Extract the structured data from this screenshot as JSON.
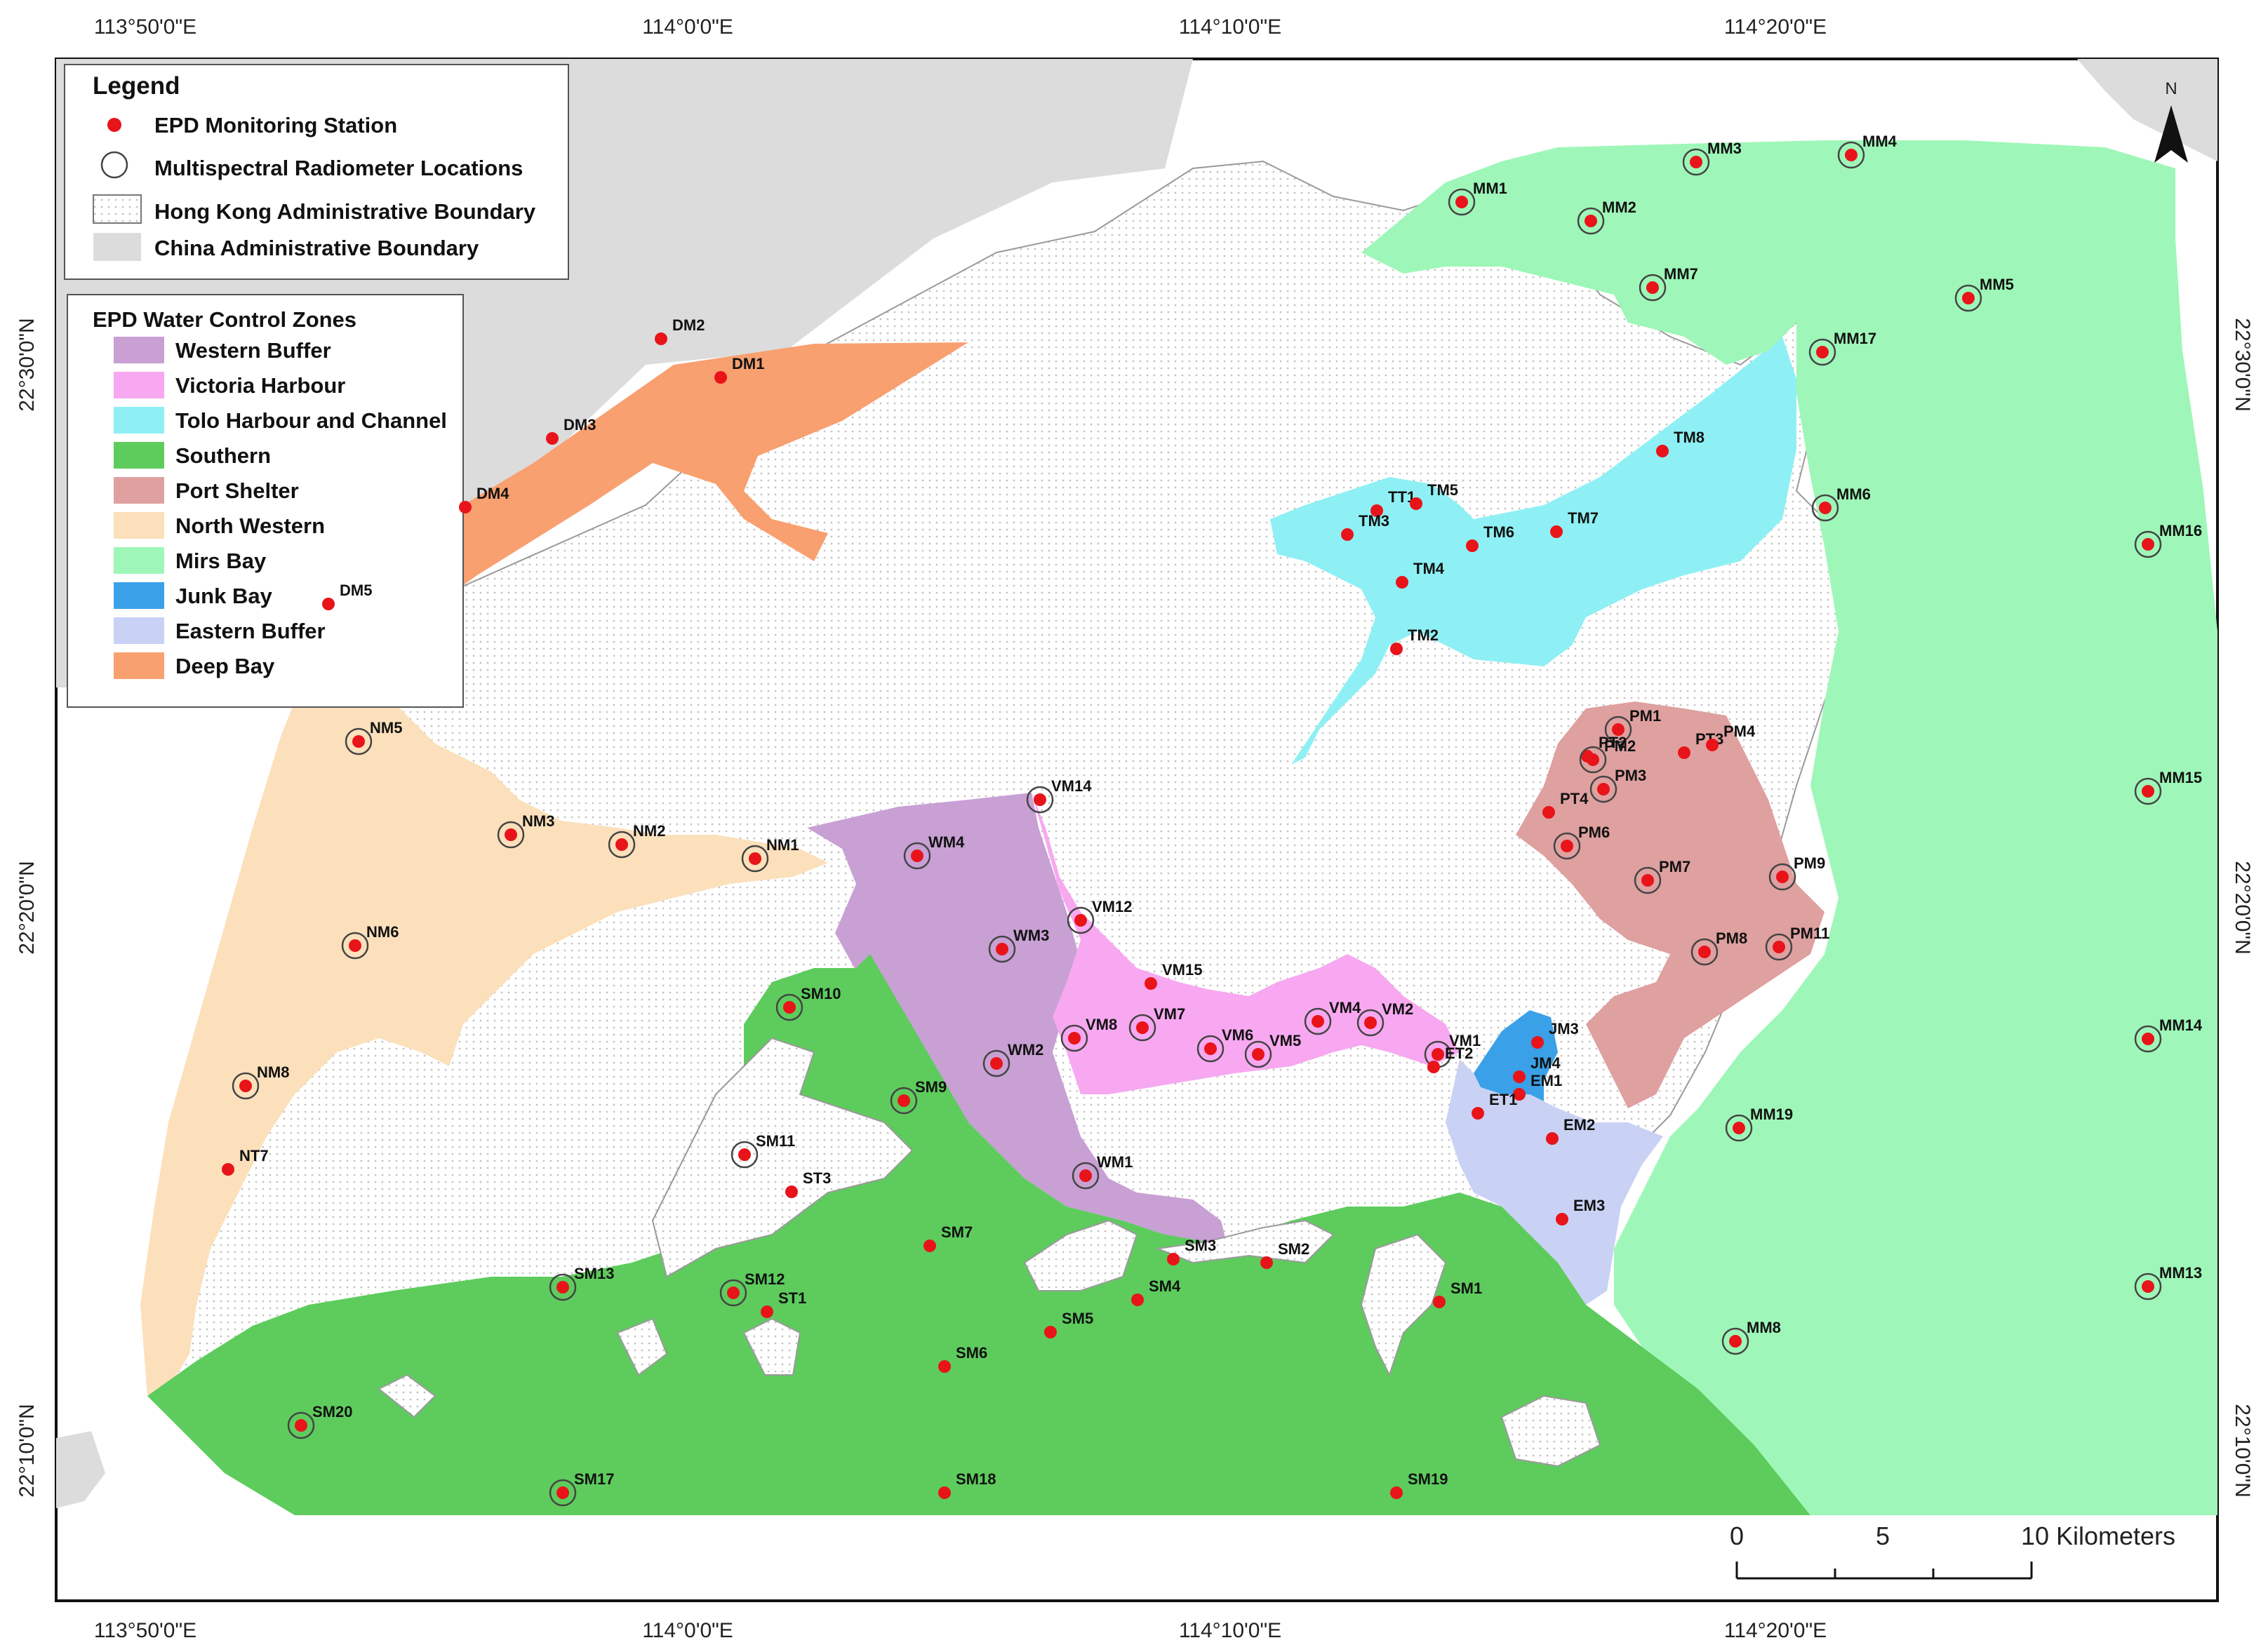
{
  "graticule": {
    "top": [
      "113°50'0\"E",
      "114°0'0\"E",
      "114°10'0\"E",
      "114°20'0\"E"
    ],
    "bottom": [
      "113°50'0\"E",
      "114°0'0\"E",
      "114°10'0\"E",
      "114°20'0\"E"
    ],
    "left": [
      "22°30'0\"N",
      "22°20'0\"N",
      "22°10'0\"N"
    ],
    "right": [
      "22°30'0\"N",
      "22°20'0\"N",
      "22°10'0\"N"
    ]
  },
  "legend": {
    "title": "Legend",
    "items": [
      {
        "label": "EPD Monitoring Station"
      },
      {
        "label": "Multispectral Radiometer Locations"
      },
      {
        "label": "Hong Kong Administrative Boundary"
      },
      {
        "label": "China Administrative Boundary"
      }
    ]
  },
  "zones_legend": {
    "title": "EPD Water Control Zones",
    "items": [
      {
        "label": "Western Buffer",
        "color": "#c8a0d4"
      },
      {
        "label": "Victoria Harbour",
        "color": "#f7a8f0"
      },
      {
        "label": "Tolo Harbour and Channel",
        "color": "#8ef0f4"
      },
      {
        "label": "Southern",
        "color": "#5dcc5d"
      },
      {
        "label": "Port Shelter",
        "color": "#dfa0a0"
      },
      {
        "label": "North Western",
        "color": "#fbe0bb"
      },
      {
        "label": "Mirs Bay",
        "color": "#9ef7b8"
      },
      {
        "label": "Junk Bay",
        "color": "#3aa0e8"
      },
      {
        "label": "Eastern Buffer",
        "color": "#c9d2f4"
      },
      {
        "label": "Deep Bay",
        "color": "#f8a070"
      }
    ]
  },
  "north_arrow": {
    "label": "N"
  },
  "scale_bar": {
    "ticks": [
      "0",
      "5",
      "10 Kilometers"
    ]
  },
  "stations": [
    {
      "label": "MM1",
      "ring": true
    },
    {
      "label": "MM2",
      "ring": true
    },
    {
      "label": "MM3",
      "ring": true
    },
    {
      "label": "MM4",
      "ring": true
    },
    {
      "label": "MM5",
      "ring": true
    },
    {
      "label": "MM7",
      "ring": true
    },
    {
      "label": "MM17",
      "ring": true
    },
    {
      "label": "MM6",
      "ring": true
    },
    {
      "label": "MM16",
      "ring": true
    },
    {
      "label": "MM15",
      "ring": true
    },
    {
      "label": "MM14",
      "ring": true
    },
    {
      "label": "MM13",
      "ring": true
    },
    {
      "label": "MM19",
      "ring": true
    },
    {
      "label": "MM8",
      "ring": true
    },
    {
      "label": "DM1",
      "ring": false
    },
    {
      "label": "DM2",
      "ring": false
    },
    {
      "label": "DM3",
      "ring": false
    },
    {
      "label": "DM4",
      "ring": false
    },
    {
      "label": "DM5",
      "ring": false
    },
    {
      "label": "NM5",
      "ring": true
    },
    {
      "label": "NM3",
      "ring": true
    },
    {
      "label": "NM2",
      "ring": true
    },
    {
      "label": "NM1",
      "ring": true
    },
    {
      "label": "NM6",
      "ring": true
    },
    {
      "label": "NM8",
      "ring": true
    },
    {
      "label": "NT7",
      "ring": false
    },
    {
      "label": "TT1",
      "ring": false
    },
    {
      "label": "TM5",
      "ring": false
    },
    {
      "label": "TM3",
      "ring": false
    },
    {
      "label": "TM6",
      "ring": false
    },
    {
      "label": "TM7",
      "ring": false
    },
    {
      "label": "TM8",
      "ring": false
    },
    {
      "label": "TM4",
      "ring": false
    },
    {
      "label": "TM2",
      "ring": false
    },
    {
      "label": "PM1",
      "ring": true
    },
    {
      "label": "PT2",
      "ring": false
    },
    {
      "label": "PM2",
      "ring": true
    },
    {
      "label": "PT3",
      "ring": false
    },
    {
      "label": "PM4",
      "ring": false
    },
    {
      "label": "PM3",
      "ring": true
    },
    {
      "label": "PT4",
      "ring": false
    },
    {
      "label": "PM6",
      "ring": true
    },
    {
      "label": "PM7",
      "ring": true
    },
    {
      "label": "PM9",
      "ring": true
    },
    {
      "label": "PM8",
      "ring": true
    },
    {
      "label": "PM11",
      "ring": true
    },
    {
      "label": "VM14",
      "ring": true
    },
    {
      "label": "WM4",
      "ring": true
    },
    {
      "label": "VM12",
      "ring": true
    },
    {
      "label": "WM3",
      "ring": true
    },
    {
      "label": "VM15",
      "ring": false
    },
    {
      "label": "VM8",
      "ring": true
    },
    {
      "label": "VM7",
      "ring": true
    },
    {
      "label": "VM6",
      "ring": true
    },
    {
      "label": "VM5",
      "ring": true
    },
    {
      "label": "VM4",
      "ring": true
    },
    {
      "label": "VM2",
      "ring": true
    },
    {
      "label": "VM1",
      "ring": true
    },
    {
      "label": "ET2",
      "ring": false
    },
    {
      "label": "JM3",
      "ring": false
    },
    {
      "label": "JM4",
      "ring": false
    },
    {
      "label": "EM1",
      "ring": false
    },
    {
      "label": "ET1",
      "ring": false
    },
    {
      "label": "EM2",
      "ring": false
    },
    {
      "label": "EM3",
      "ring": false
    },
    {
      "label": "WM2",
      "ring": true
    },
    {
      "label": "WM1",
      "ring": true
    },
    {
      "label": "SM10",
      "ring": true
    },
    {
      "label": "SM9",
      "ring": true
    },
    {
      "label": "SM11",
      "ring": true
    },
    {
      "label": "ST3",
      "ring": false
    },
    {
      "label": "SM7",
      "ring": false
    },
    {
      "label": "SM3",
      "ring": false
    },
    {
      "label": "SM2",
      "ring": false
    },
    {
      "label": "SM4",
      "ring": false
    },
    {
      "label": "SM1",
      "ring": false
    },
    {
      "label": "SM13",
      "ring": true
    },
    {
      "label": "SM12",
      "ring": true
    },
    {
      "label": "ST1",
      "ring": false
    },
    {
      "label": "SM5",
      "ring": false
    },
    {
      "label": "SM6",
      "ring": false
    },
    {
      "label": "SM20",
      "ring": true
    },
    {
      "label": "SM17",
      "ring": true
    },
    {
      "label": "SM18",
      "ring": false
    },
    {
      "label": "SM19",
      "ring": false
    }
  ]
}
